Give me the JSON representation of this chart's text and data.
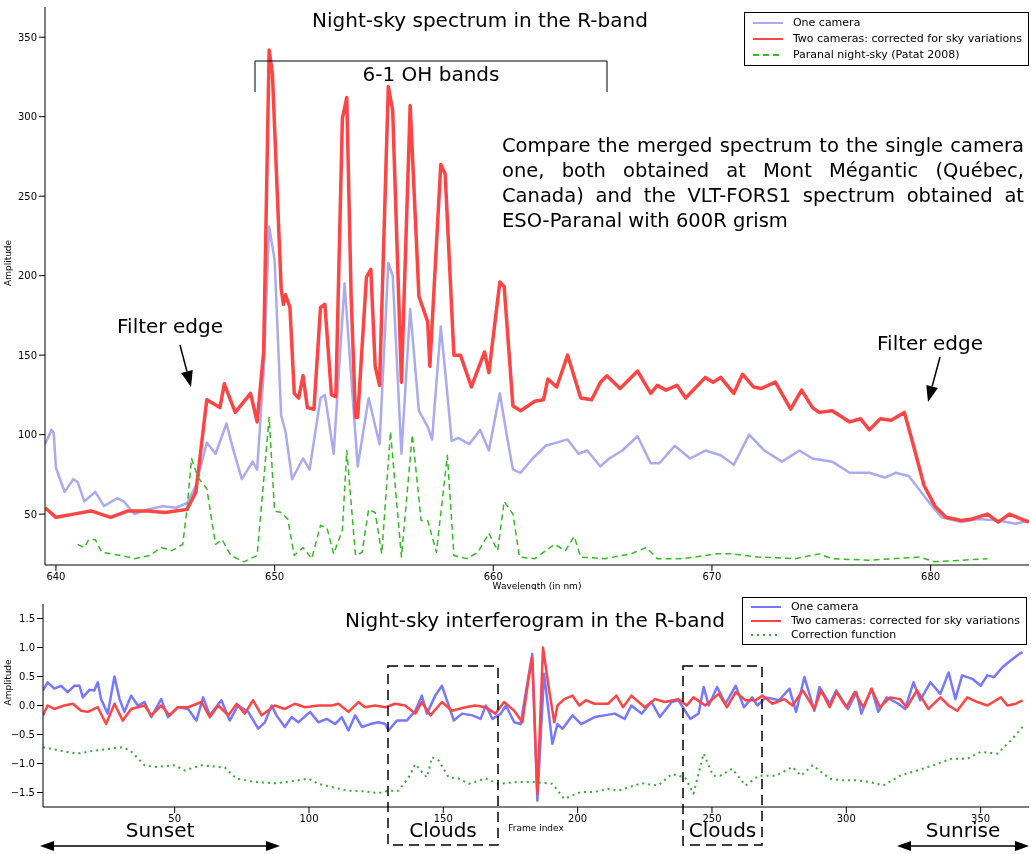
{
  "chart_data": [
    {
      "type": "line",
      "title": "Night-sky spectrum in the R-band",
      "xlabel": "Wavelength (in nm)",
      "ylabel": "Amplitude",
      "xlim": [
        639.5,
        684.5
      ],
      "ylim": [
        18,
        369
      ],
      "xticks": [
        640,
        650,
        660,
        670,
        680
      ],
      "yticks": [
        50,
        100,
        150,
        200,
        250,
        300,
        350
      ],
      "legend": "top right",
      "annotations": [
        "6-1 OH bands",
        "Compare the merged spectrum to the single camera one, both obtained at Mont Mégantic (Québec, Canada) and the VLT-FORS1 spectrum obtained at ESO-Paranal with 600R grism",
        "Filter edge",
        "Filter edge"
      ],
      "series": [
        {
          "name": "One camera",
          "color": "#aaaaee",
          "x": [
            639.5,
            639.8,
            639.9,
            640,
            640.4,
            640.8,
            641.0,
            641.3,
            641.8,
            642.2,
            642.8,
            643.1,
            643.6,
            644.2,
            644.9,
            645.5,
            646.0,
            646.4,
            646.9,
            647.3,
            647.8,
            648.1,
            648.5,
            649.0,
            649.2,
            649.5,
            649.75,
            650.0,
            650.3,
            650.5,
            650.8,
            651.3,
            651.6,
            652.1,
            652.3,
            652.7,
            653.2,
            653.5,
            653.8,
            654.3,
            654.8,
            655.2,
            655.4,
            655.8,
            656.2,
            656.6,
            657.0,
            657.2,
            657.6,
            657.8,
            658.1,
            658.4,
            658.9,
            659.4,
            659.8,
            660.3,
            660.6,
            660.9,
            661.25,
            661.8,
            662.4,
            662.9,
            663.4,
            663.9,
            664.3,
            664.9,
            665.3,
            665.9,
            666.6,
            667.2,
            667.6,
            668.3,
            669.0,
            669.7,
            670.4,
            671.0,
            671.7,
            672.4,
            673.2,
            674.0,
            674.6,
            675.5,
            676.3,
            677.2,
            677.9,
            678.4,
            679.0,
            679.9,
            680.5,
            681.4,
            682.2,
            683.1,
            683.9,
            684.5
          ],
          "values": [
            94,
            103,
            101,
            79,
            64,
            72,
            70,
            58,
            64,
            55,
            60,
            58,
            50,
            53,
            55,
            54,
            57,
            68,
            95,
            88,
            107,
            91,
            72,
            83,
            78,
            140,
            231,
            210,
            112,
            102,
            72,
            85,
            78,
            123,
            125,
            88,
            195,
            137,
            80,
            123,
            94,
            208,
            200,
            88,
            179,
            115,
            105,
            97,
            168,
            140,
            96,
            98,
            94,
            103,
            90,
            126,
            101,
            78,
            76,
            85,
            93,
            95,
            97,
            88,
            90,
            80,
            85,
            90,
            99,
            82,
            82,
            93,
            85,
            90,
            87,
            81,
            100,
            90,
            83,
            90,
            85,
            83,
            76,
            76,
            73,
            76,
            74,
            58,
            48,
            45,
            47,
            46,
            44,
            46
          ]
        },
        {
          "name": "Two cameras: corrected for sky variations",
          "color": "#ff4444",
          "x": [
            639.5,
            640,
            640.8,
            641.6,
            642.5,
            643.3,
            644.2,
            645,
            646.0,
            646.4,
            646.9,
            647.5,
            647.7,
            648.2,
            648.9,
            649.2,
            649.5,
            649.75,
            649.9,
            650.3,
            650.4,
            650.5,
            650.7,
            650.9,
            651.1,
            651.3,
            651.5,
            651.8,
            652.1,
            652.3,
            652.6,
            652.8,
            653.1,
            653.3,
            653.5,
            653.7,
            653.8,
            654.2,
            654.4,
            654.6,
            654.8,
            655.2,
            655.4,
            655.8,
            656.2,
            656.6,
            657.0,
            657.1,
            657.6,
            657.8,
            658.2,
            658.5,
            659.0,
            659.6,
            659.8,
            660.3,
            660.5,
            660.9,
            661.25,
            661.9,
            662.3,
            662.5,
            662.9,
            663.4,
            664.0,
            664.5,
            664.9,
            665.2,
            665.8,
            666.6,
            667.2,
            667.5,
            667.9,
            668.4,
            668.8,
            669.7,
            670.05,
            670.4,
            671.0,
            671.4,
            671.9,
            672.25,
            672.9,
            673.6,
            674.1,
            674.6,
            674.9,
            675.5,
            676.3,
            676.8,
            677.2,
            677.7,
            678.2,
            678.8,
            679.2,
            679.7,
            680.2,
            680.7,
            681.4,
            681.9,
            682.6,
            683.1,
            683.6,
            684.5
          ],
          "values": [
            54,
            48,
            50,
            52,
            48,
            52,
            52,
            51,
            53,
            64,
            122,
            117,
            132,
            114,
            126,
            108,
            152,
            342,
            327,
            192,
            182,
            188,
            180,
            126,
            123,
            137,
            117,
            116,
            180,
            182,
            125,
            124,
            299,
            312,
            187,
            111,
            111,
            199,
            204,
            143,
            131,
            319,
            304,
            133,
            307,
            187,
            171,
            143,
            270,
            264,
            150,
            150,
            130,
            152,
            139,
            196,
            193,
            118,
            115,
            121,
            122,
            135,
            130,
            150,
            123,
            122,
            133,
            137,
            129,
            140,
            126,
            131,
            128,
            131,
            123,
            136,
            133,
            136,
            126,
            138,
            130,
            129,
            133,
            116,
            128,
            117,
            114,
            115,
            108,
            110,
            103,
            110,
            109,
            114,
            94,
            68,
            55,
            48,
            46,
            47,
            50,
            45,
            50,
            45
          ]
        },
        {
          "name": "Paranal night-sky (Patat 2008)",
          "color": "#33bb22",
          "line_style": "dashed",
          "x": [
            641.0,
            641.3,
            641.5,
            641.8,
            642.1,
            642.5,
            643.0,
            643.6,
            644.3,
            644.8,
            645.3,
            645.8,
            646.0,
            646.2,
            646.5,
            646.9,
            647.3,
            647.6,
            648.0,
            648.6,
            649.2,
            649.5,
            649.75,
            650.0,
            650.3,
            650.6,
            650.9,
            651.3,
            651.7,
            652.1,
            652.4,
            652.7,
            653.1,
            653.3,
            653.7,
            654.0,
            654.3,
            654.6,
            654.9,
            655.3,
            655.8,
            656.3,
            656.7,
            657.0,
            657.4,
            657.9,
            658.2,
            658.8,
            659.3,
            659.8,
            660.2,
            660.5,
            660.9,
            661.2,
            661.9,
            662.8,
            663.3,
            663.7,
            664.0,
            665.1,
            666.3,
            667.0,
            667.5,
            668.7,
            669.2,
            670.2,
            670.9,
            672.1,
            673.8,
            674.9,
            675.5,
            677.2,
            679.5,
            680.2,
            682.6
          ],
          "values": [
            31,
            29,
            34,
            34,
            26,
            25,
            24,
            22,
            24,
            29,
            27,
            31,
            54,
            85,
            73,
            66,
            31,
            34,
            24,
            20,
            24,
            71,
            111,
            52,
            51,
            47,
            24,
            29,
            22,
            43,
            41,
            25,
            40,
            90,
            24,
            26,
            53,
            51,
            25,
            102,
            23,
            100,
            46,
            46,
            26,
            87,
            24,
            22,
            26,
            38,
            27,
            58,
            50,
            23,
            22,
            31,
            27,
            36,
            23,
            22,
            25,
            29,
            22,
            22,
            23,
            25,
            25,
            23,
            22,
            25,
            22,
            21,
            23,
            20,
            22
          ]
        }
      ]
    },
    {
      "type": "line",
      "title": "Night-sky interferogram in the R-band",
      "xlabel": "Frame index",
      "ylabel": "Amplitude",
      "xlim": [
        1,
        368
      ],
      "ylim": [
        -1.75,
        1.75
      ],
      "xticks": [
        50,
        100,
        150,
        200,
        250,
        300,
        350
      ],
      "yticks": [
        {
          "value": -1.5,
          "label": "−1.5"
        },
        {
          "value": -1,
          "label": "−1.0"
        },
        {
          "value": -0.5,
          "label": "−0.5"
        },
        {
          "value": 0,
          "label": "0.0"
        },
        {
          "value": 0.5,
          "label": "0.5"
        },
        {
          "value": 1,
          "label": "1.0"
        },
        {
          "value": 1.5,
          "label": "1.5"
        }
      ],
      "legend": "top right",
      "annotations": [
        "Sunset",
        "Clouds",
        "Clouds",
        "Sunrise"
      ],
      "series": [
        {
          "name": "One camera",
          "color": "#7777ff",
          "x": [
            1,
            2.7,
            5.2,
            7.7,
            10.2,
            12.7,
            14.6,
            15.8,
            18.3,
            20.1,
            21.4,
            22.6,
            25.1,
            27.6,
            29.5,
            31.3,
            33.8,
            36.3,
            38.8,
            41.3,
            45,
            47.5,
            51.2,
            55,
            58.1,
            60.6,
            63.1,
            67.4,
            70.5,
            73.6,
            77.4,
            81.1,
            83.6,
            86.1,
            87.9,
            91,
            93.5,
            96,
            100.4,
            103.5,
            106.6,
            109.7,
            112.2,
            114.7,
            117.2,
            119.7,
            122.8,
            125.9,
            128.4,
            129.6,
            132.7,
            136.4,
            139.6,
            142,
            143.9,
            147,
            149.5,
            152,
            153.9,
            157,
            160.8,
            163.9,
            165.8,
            168.3,
            171.4,
            173.3,
            176.4,
            178.8,
            180.6,
            183.1,
            185,
            187.5,
            190.6,
            192.5,
            194.4,
            198.1,
            201.3,
            206.3,
            210,
            213.8,
            217.5,
            220,
            223.8,
            227.5,
            230.6,
            235,
            237.5,
            241.9,
            245,
            246.9,
            248.8,
            251.9,
            255,
            258.8,
            261.9,
            265,
            266.9,
            270,
            275,
            278.8,
            281.3,
            284.4,
            288.1,
            290,
            293.8,
            296.3,
            300.6,
            303.8,
            305.6,
            309.4,
            311.9,
            315,
            319.4,
            321.9,
            325,
            327.5,
            331.3,
            335,
            338.1,
            340.6,
            343.1,
            346.9,
            350,
            352.5,
            355,
            358.1,
            361.3,
            364.4,
            365.6
          ],
          "values": [
            0.26,
            0.4,
            0.29,
            0.34,
            0.23,
            0.34,
            0.34,
            0.14,
            0.27,
            0.26,
            0.4,
            0.11,
            -0.14,
            0.5,
            0.11,
            -0.11,
            0.17,
            0,
            0.06,
            -0.2,
            0.11,
            -0.2,
            -0.03,
            -0.06,
            -0.26,
            0.14,
            -0.17,
            0.09,
            -0.26,
            0,
            -0.11,
            -0.4,
            -0.29,
            0,
            -0.17,
            -0.37,
            -0.2,
            -0.29,
            -0.11,
            -0.29,
            -0.23,
            -0.32,
            -0.2,
            -0.43,
            -0.17,
            -0.37,
            -0.32,
            -0.29,
            -0.32,
            -0.43,
            -0.26,
            -0.26,
            -0.09,
            0.17,
            -0.14,
            0.17,
            0.34,
            0,
            -0.26,
            -0.14,
            -0.17,
            -0.23,
            0,
            -0.23,
            -0.14,
            0,
            -0.29,
            -0.32,
            0.2,
            0.89,
            -1.64,
            0.55,
            -0.66,
            -0.32,
            -0.4,
            -0.17,
            -0.32,
            -0.2,
            -0.17,
            -0.14,
            -0.23,
            0,
            -0.14,
            0.06,
            -0.2,
            0.06,
            0.09,
            -0.23,
            -0.14,
            0.32,
            0,
            0.32,
            0.03,
            0.34,
            -0.03,
            0.14,
            0,
            0.14,
            0.09,
            0.29,
            -0.11,
            0.49,
            -0.09,
            0.32,
            0.03,
            0.26,
            -0.06,
            0.23,
            -0.14,
            0.29,
            -0.11,
            0.14,
            0.03,
            -0.06,
            0.4,
            0.09,
            0.4,
            0.2,
            0.57,
            0.11,
            0.52,
            0.46,
            0.34,
            0.52,
            0.49,
            0.66,
            0.78,
            0.89,
            0.92
          ]
        },
        {
          "name": "Two cameras: corrected for sky variations",
          "color": "#ff4444",
          "x": [
            1,
            2.7,
            5.2,
            8.9,
            12.1,
            15.2,
            17.7,
            21.4,
            24.5,
            27.6,
            30.7,
            33.8,
            38.8,
            41.3,
            45,
            48.1,
            51.2,
            55,
            60,
            63.1,
            66.2,
            70,
            73.1,
            76.1,
            79.2,
            82.4,
            87.3,
            91,
            94.8,
            98.5,
            103.5,
            108.5,
            111,
            114.7,
            118.4,
            120.9,
            124.6,
            128.4,
            132.1,
            135.8,
            139.6,
            142,
            145.2,
            149.5,
            153.2,
            158.2,
            161.9,
            165.8,
            169.4,
            172.6,
            176.4,
            179.4,
            181.3,
            183.1,
            185,
            187.1,
            189.4,
            191.3,
            192.5,
            195,
            198.1,
            200.6,
            203.1,
            206.3,
            211.3,
            214.4,
            216.9,
            220,
            225,
            228.8,
            232.5,
            237.5,
            240.6,
            243.1,
            247.5,
            252.5,
            255.6,
            258.8,
            262.5,
            266.3,
            268.8,
            272.5,
            276.9,
            280,
            283.8,
            288.1,
            290.6,
            293.8,
            296.3,
            300,
            303.1,
            306.3,
            309.4,
            312.5,
            316.3,
            320,
            322.5,
            326.3,
            330.6,
            335,
            338.1,
            341.3,
            345,
            348.8,
            352.5,
            357.5,
            360,
            363.1,
            365.6
          ],
          "values": [
            -0.17,
            0,
            -0.06,
            0,
            0.03,
            -0.09,
            -0.11,
            -0.03,
            -0.32,
            0.03,
            -0.26,
            -0.06,
            0,
            -0.17,
            0,
            -0.17,
            -0.03,
            -0.03,
            0.06,
            -0.2,
            0,
            -0.17,
            0.03,
            -0.14,
            0.09,
            -0.17,
            0,
            -0.06,
            0.03,
            -0.03,
            0,
            0,
            0.03,
            -0.11,
            0.06,
            -0.03,
            0,
            -0.03,
            0.03,
            0,
            -0.14,
            0.06,
            -0.17,
            0.06,
            -0.09,
            -0.03,
            0,
            -0.03,
            -0.14,
            0.06,
            -0.09,
            -0.29,
            0.32,
            0.83,
            -1.52,
            1.0,
            0.26,
            -0.29,
            0,
            0.11,
            0.17,
            0,
            0.09,
            0.03,
            0.03,
            0.17,
            -0.03,
            0.17,
            -0.03,
            0.11,
            0.06,
            0.11,
            0,
            0.14,
            0,
            0.2,
            -0.03,
            0.23,
            0.09,
            0.09,
            0.17,
            0.03,
            0.11,
            0,
            0.26,
            -0.06,
            0.26,
            -0.03,
            0.23,
            -0.03,
            0.23,
            -0.03,
            0.29,
            -0.03,
            0.14,
            0.11,
            -0.03,
            0.26,
            -0.06,
            0.14,
            0,
            -0.09,
            0.14,
            0.06,
            0,
            0.14,
            0,
            0.03,
            0.09
          ]
        },
        {
          "name": "Correction function",
          "color": "#33aa33",
          "line_style": "dotted",
          "x": [
            1,
            7.5,
            13.7,
            19.9,
            24.9,
            30.5,
            33.6,
            38.8,
            42.5,
            50,
            53.7,
            60,
            68.7,
            73,
            79.9,
            87.3,
            94.8,
            99.8,
            103.5,
            109.7,
            114.7,
            120.9,
            125.9,
            129.6,
            133.3,
            137.1,
            139.6,
            141.5,
            143.9,
            145.8,
            148.3,
            152,
            155.7,
            159.5,
            165.8,
            170.6,
            177.5,
            183.8,
            190.6,
            195,
            201.3,
            206.3,
            211.3,
            215,
            223.8,
            230,
            235,
            240,
            243.1,
            246.9,
            250.4,
            253.1,
            257.5,
            262.5,
            267.5,
            273.8,
            280,
            283.1,
            287.5,
            293.8,
            298.8,
            303.8,
            308.8,
            313.8,
            320,
            326.3,
            332.5,
            338.8,
            345,
            350,
            356.3,
            361.3,
            365.6
          ],
          "values": [
            -0.72,
            -0.78,
            -0.83,
            -0.78,
            -0.75,
            -0.72,
            -0.78,
            -1.03,
            -1.06,
            -1.03,
            -1.12,
            -1.03,
            -1.07,
            -1.26,
            -1.32,
            -1.34,
            -1.3,
            -1.26,
            -1.35,
            -1.42,
            -1.47,
            -1.48,
            -1.51,
            -1.47,
            -1.47,
            -1.24,
            -1.01,
            -1.12,
            -1.24,
            -0.89,
            -0.95,
            -1.24,
            -1.26,
            -1.35,
            -1.26,
            -1.35,
            -1.32,
            -1.32,
            -1.35,
            -1.61,
            -1.49,
            -1.49,
            -1.44,
            -1.47,
            -1.34,
            -1.38,
            -1.18,
            -1.24,
            -1.52,
            -0.83,
            -1.21,
            -1.21,
            -1.09,
            -1.38,
            -1.21,
            -1.21,
            -1.06,
            -1.21,
            -1.03,
            -1.26,
            -1.29,
            -1.29,
            -1.32,
            -1.38,
            -1.21,
            -1.12,
            -1.03,
            -0.92,
            -0.92,
            -0.8,
            -0.83,
            -0.6,
            -0.37
          ]
        }
      ]
    }
  ]
}
